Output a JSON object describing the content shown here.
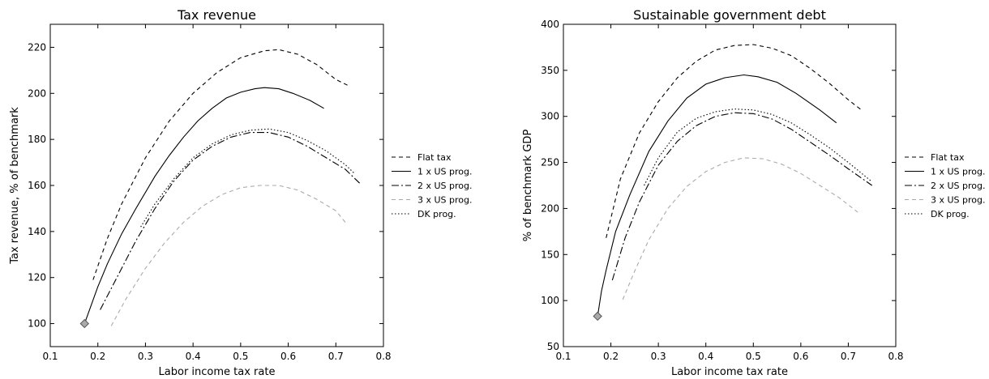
{
  "chart_data": [
    {
      "type": "line",
      "title": "Tax revenue",
      "xlabel": "Labor income tax rate",
      "ylabel": "Tax revenue, % of benchmark",
      "xlim": [
        0.1,
        0.8
      ],
      "ylim": [
        90,
        230
      ],
      "xticks": [
        0.1,
        0.2,
        0.3,
        0.4,
        0.5,
        0.6,
        0.7,
        0.8
      ],
      "xtick_labels": [
        "0.1",
        "0.2",
        "0.3",
        "0.4",
        "0.5",
        "0.6",
        "0.7",
        "0.8"
      ],
      "yticks": [
        100,
        120,
        140,
        160,
        180,
        200,
        220
      ],
      "ytick_labels": [
        "100",
        "120",
        "140",
        "160",
        "180",
        "200",
        "220"
      ],
      "grid": false,
      "legend_position": "right outside",
      "series": [
        {
          "name": "Flat tax",
          "style": "dashed",
          "color": "#000000",
          "x": [
            0.19,
            0.22,
            0.25,
            0.3,
            0.35,
            0.4,
            0.45,
            0.5,
            0.55,
            0.58,
            0.62,
            0.66,
            0.7,
            0.73
          ],
          "y": [
            119,
            137,
            152,
            172,
            188,
            200,
            209,
            215.5,
            218.5,
            219,
            217,
            212.5,
            206,
            203
          ]
        },
        {
          "name": "1 x US prog.",
          "style": "solid",
          "color": "#000000",
          "x": [
            0.172,
            0.2,
            0.22,
            0.25,
            0.28,
            0.32,
            0.35,
            0.38,
            0.41,
            0.44,
            0.47,
            0.5,
            0.53,
            0.55,
            0.58,
            0.61,
            0.645,
            0.675
          ],
          "y": [
            100,
            116,
            126,
            139,
            150,
            164,
            173,
            181,
            188,
            193.5,
            198,
            200.5,
            202,
            202.5,
            202,
            200,
            197,
            193.5
          ]
        },
        {
          "name": "2 x US prog.",
          "style": "dashdot",
          "color": "#000000",
          "x": [
            0.205,
            0.24,
            0.28,
            0.32,
            0.36,
            0.4,
            0.44,
            0.48,
            0.52,
            0.56,
            0.6,
            0.64,
            0.68,
            0.72,
            0.75
          ],
          "y": [
            106,
            120,
            136,
            150,
            162,
            171,
            177,
            181,
            183,
            183,
            181,
            177,
            172,
            167,
            161
          ]
        },
        {
          "name": "3 x US prog.",
          "style": "dashed",
          "color": "#aaaaaa",
          "x": [
            0.228,
            0.26,
            0.3,
            0.34,
            0.38,
            0.42,
            0.46,
            0.5,
            0.54,
            0.58,
            0.62,
            0.66,
            0.7,
            0.72
          ],
          "y": [
            99,
            111,
            124,
            135,
            144,
            151,
            156,
            159,
            160,
            160,
            158,
            154,
            149,
            144
          ]
        },
        {
          "name": "DK prog.",
          "style": "dotted",
          "color": "#000000",
          "x": [
            0.29,
            0.32,
            0.36,
            0.4,
            0.44,
            0.48,
            0.52,
            0.56,
            0.6,
            0.64,
            0.68,
            0.72,
            0.74
          ],
          "y": [
            142,
            152,
            163,
            172,
            178,
            182,
            184,
            184.5,
            183,
            179.5,
            175,
            169,
            165
          ]
        }
      ],
      "marker": {
        "x": 0.172,
        "y": 100,
        "shape": "diamond",
        "color": "#aaaaaa"
      }
    },
    {
      "type": "line",
      "title": "Sustainable government debt",
      "xlabel": "Labor income tax rate",
      "ylabel": "% of benchmark GDP",
      "xlim": [
        0.1,
        0.8
      ],
      "ylim": [
        50,
        400
      ],
      "xticks": [
        0.1,
        0.2,
        0.3,
        0.4,
        0.5,
        0.6,
        0.7,
        0.8
      ],
      "xtick_labels": [
        "0.1",
        "0.2",
        "0.3",
        "0.4",
        "0.5",
        "0.6",
        "0.7",
        "0.8"
      ],
      "yticks": [
        50,
        100,
        150,
        200,
        250,
        300,
        350,
        400
      ],
      "ytick_labels": [
        "50",
        "100",
        "150",
        "200",
        "250",
        "300",
        "350",
        "400"
      ],
      "grid": false,
      "legend_position": "right outside",
      "series": [
        {
          "name": "Flat tax",
          "style": "dashed",
          "color": "#000000",
          "x": [
            0.19,
            0.22,
            0.26,
            0.3,
            0.34,
            0.38,
            0.42,
            0.46,
            0.5,
            0.54,
            0.58,
            0.62,
            0.66,
            0.7,
            0.73
          ],
          "y": [
            168,
            232,
            282,
            316,
            342,
            360,
            372,
            377,
            378,
            374,
            366,
            352,
            336,
            318,
            306
          ]
        },
        {
          "name": "1 x US prog.",
          "style": "solid",
          "color": "#000000",
          "x": [
            0.172,
            0.18,
            0.19,
            0.21,
            0.24,
            0.28,
            0.32,
            0.36,
            0.4,
            0.44,
            0.48,
            0.51,
            0.55,
            0.59,
            0.64,
            0.675
          ],
          "y": [
            83,
            110,
            133,
            175,
            215,
            262,
            295,
            320,
            335,
            342,
            345,
            343,
            337,
            325,
            307,
            293
          ]
        },
        {
          "name": "2 x US prog.",
          "style": "dashdot",
          "color": "#000000",
          "x": [
            0.203,
            0.23,
            0.26,
            0.3,
            0.34,
            0.38,
            0.42,
            0.46,
            0.5,
            0.54,
            0.58,
            0.62,
            0.66,
            0.7,
            0.75
          ],
          "y": [
            122,
            168,
            207,
            247,
            273,
            290,
            300,
            304,
            303,
            297,
            286,
            272,
            258,
            243,
            225
          ]
        },
        {
          "name": "3 x US prog.",
          "style": "dashed",
          "color": "#aaaaaa",
          "x": [
            0.225,
            0.25,
            0.28,
            0.32,
            0.36,
            0.4,
            0.44,
            0.48,
            0.52,
            0.56,
            0.6,
            0.64,
            0.68,
            0.72
          ],
          "y": [
            101,
            132,
            166,
            200,
            224,
            240,
            250,
            255,
            254,
            248,
            238,
            225,
            212,
            196
          ]
        },
        {
          "name": "DK prog.",
          "style": "dotted",
          "color": "#000000",
          "x": [
            0.27,
            0.3,
            0.34,
            0.38,
            0.42,
            0.46,
            0.5,
            0.54,
            0.58,
            0.62,
            0.66,
            0.7,
            0.75
          ],
          "y": [
            225,
            255,
            283,
            298,
            305,
            308,
            307,
            302,
            293,
            280,
            266,
            250,
            229
          ]
        }
      ],
      "marker": {
        "x": 0.172,
        "y": 83,
        "shape": "diamond",
        "color": "#aaaaaa"
      }
    }
  ]
}
